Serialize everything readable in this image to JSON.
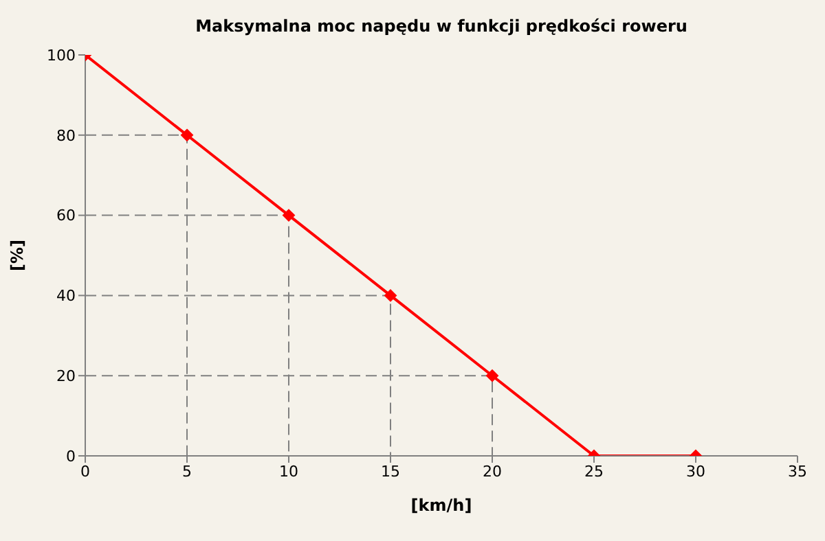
{
  "chart_data": {
    "type": "line",
    "title": "Maksymalna moc napędu w funkcji prędkości roweru",
    "xlabel": "[km/h]",
    "ylabel": "[%]",
    "xlim": [
      0,
      35
    ],
    "xticks": [
      0,
      5,
      10,
      15,
      20,
      25,
      30,
      35
    ],
    "ylim": [
      0,
      100
    ],
    "yticks": [
      0,
      20,
      40,
      60,
      80,
      100
    ],
    "series": [
      {
        "x": [
          0,
          5,
          5
        ],
        "values": [
          80,
          80,
          0
        ],
        "color": "#808080",
        "line_style": "dashed",
        "marker": "none"
      },
      {
        "x": [
          0,
          10,
          10
        ],
        "values": [
          60,
          60,
          0
        ],
        "color": "#808080",
        "line_style": "dashed",
        "marker": "none"
      },
      {
        "x": [
          0,
          15,
          15
        ],
        "values": [
          40,
          40,
          0
        ],
        "color": "#808080",
        "line_style": "dashed",
        "marker": "none"
      },
      {
        "x": [
          0,
          20,
          20
        ],
        "values": [
          20,
          20,
          0
        ],
        "color": "#808080",
        "line_style": "dashed",
        "marker": "none"
      },
      {
        "x": [
          0,
          5,
          10,
          15,
          20,
          25,
          30
        ],
        "values": [
          100,
          80,
          60,
          40,
          20,
          0,
          0
        ],
        "color": "#ff0000",
        "line_style": "solid",
        "marker": "diamond"
      }
    ]
  }
}
